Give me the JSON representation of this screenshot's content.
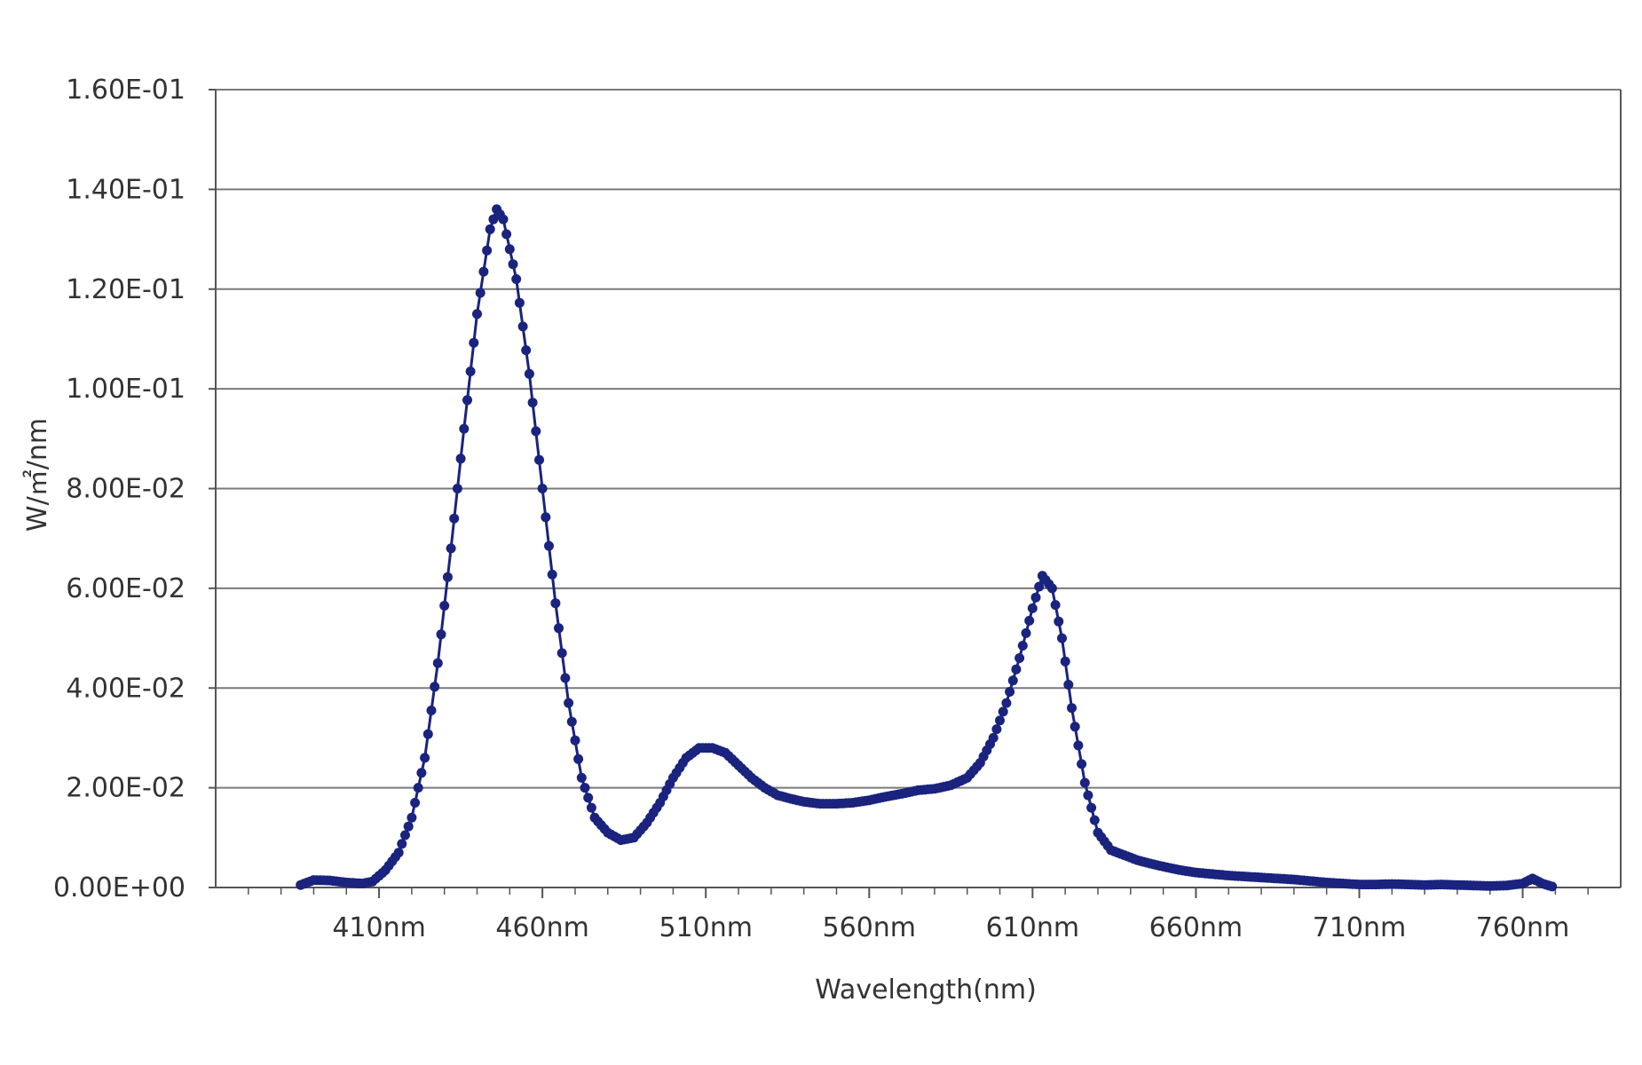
{
  "chart_data": {
    "type": "line",
    "xlabel": "Wavelength(nm)",
    "ylabel": "W/㎡/nm",
    "xlim": [
      360,
      790
    ],
    "ylim": [
      0,
      0.16
    ],
    "grid": "horizontal",
    "legend": "none",
    "colors": {
      "series": "#1a237e",
      "grid": "#7a7a7a",
      "axis": "#555555",
      "text": "#333333"
    },
    "x_ticks": [
      {
        "value": 410,
        "label": "410nm"
      },
      {
        "value": 460,
        "label": "460nm"
      },
      {
        "value": 510,
        "label": "510nm"
      },
      {
        "value": 560,
        "label": "560nm"
      },
      {
        "value": 610,
        "label": "610nm"
      },
      {
        "value": 660,
        "label": "660nm"
      },
      {
        "value": 710,
        "label": "710nm"
      },
      {
        "value": 760,
        "label": "760nm"
      }
    ],
    "y_ticks": [
      {
        "value": 0.0,
        "label": "0.00E+00"
      },
      {
        "value": 0.02,
        "label": "2.00E-02"
      },
      {
        "value": 0.04,
        "label": "4.00E-02"
      },
      {
        "value": 0.06,
        "label": "6.00E-02"
      },
      {
        "value": 0.08,
        "label": "8.00E-02"
      },
      {
        "value": 0.1,
        "label": "1.00E-01"
      },
      {
        "value": 0.12,
        "label": "1.20E-01"
      },
      {
        "value": 0.14,
        "label": "1.40E-01"
      },
      {
        "value": 0.16,
        "label": "1.60E-01"
      }
    ],
    "series": [
      {
        "points": [
          [
            386,
            0.0005
          ],
          [
            390,
            0.0015
          ],
          [
            395,
            0.0014
          ],
          [
            400,
            0.001
          ],
          [
            405,
            0.0008
          ],
          [
            408,
            0.0012
          ],
          [
            412,
            0.0035
          ],
          [
            416,
            0.007
          ],
          [
            420,
            0.014
          ],
          [
            424,
            0.026
          ],
          [
            428,
            0.045
          ],
          [
            432,
            0.068
          ],
          [
            436,
            0.092
          ],
          [
            440,
            0.115
          ],
          [
            444,
            0.132
          ],
          [
            446,
            0.136
          ],
          [
            448,
            0.134
          ],
          [
            452,
            0.122
          ],
          [
            456,
            0.103
          ],
          [
            460,
            0.08
          ],
          [
            464,
            0.057
          ],
          [
            468,
            0.037
          ],
          [
            472,
            0.022
          ],
          [
            476,
            0.014
          ],
          [
            480,
            0.011
          ],
          [
            484,
            0.0095
          ],
          [
            488,
            0.01
          ],
          [
            492,
            0.013
          ],
          [
            496,
            0.017
          ],
          [
            500,
            0.022
          ],
          [
            504,
            0.026
          ],
          [
            508,
            0.028
          ],
          [
            512,
            0.028
          ],
          [
            516,
            0.027
          ],
          [
            520,
            0.0245
          ],
          [
            524,
            0.022
          ],
          [
            528,
            0.02
          ],
          [
            532,
            0.0185
          ],
          [
            536,
            0.0178
          ],
          [
            540,
            0.0172
          ],
          [
            545,
            0.0168
          ],
          [
            550,
            0.0168
          ],
          [
            555,
            0.017
          ],
          [
            560,
            0.0175
          ],
          [
            565,
            0.0182
          ],
          [
            570,
            0.0188
          ],
          [
            575,
            0.0195
          ],
          [
            580,
            0.0198
          ],
          [
            585,
            0.0205
          ],
          [
            590,
            0.022
          ],
          [
            594,
            0.025
          ],
          [
            598,
            0.03
          ],
          [
            602,
            0.037
          ],
          [
            606,
            0.046
          ],
          [
            610,
            0.056
          ],
          [
            613,
            0.0625
          ],
          [
            616,
            0.06
          ],
          [
            619,
            0.05
          ],
          [
            622,
            0.036
          ],
          [
            626,
            0.021
          ],
          [
            630,
            0.011
          ],
          [
            634,
            0.0075
          ],
          [
            638,
            0.0065
          ],
          [
            642,
            0.0055
          ],
          [
            646,
            0.0048
          ],
          [
            650,
            0.0042
          ],
          [
            655,
            0.0035
          ],
          [
            660,
            0.003
          ],
          [
            665,
            0.0027
          ],
          [
            670,
            0.0024
          ],
          [
            675,
            0.0022
          ],
          [
            680,
            0.002
          ],
          [
            685,
            0.0018
          ],
          [
            690,
            0.0016
          ],
          [
            695,
            0.0013
          ],
          [
            700,
            0.001
          ],
          [
            705,
            0.0008
          ],
          [
            710,
            0.0006
          ],
          [
            715,
            0.0006
          ],
          [
            720,
            0.0007
          ],
          [
            725,
            0.0006
          ],
          [
            730,
            0.0005
          ],
          [
            735,
            0.0006
          ],
          [
            740,
            0.0005
          ],
          [
            745,
            0.0004
          ],
          [
            750,
            0.0003
          ],
          [
            755,
            0.0004
          ],
          [
            760,
            0.0008
          ],
          [
            763,
            0.0018
          ],
          [
            766,
            0.0008
          ],
          [
            769,
            0.0002
          ]
        ]
      }
    ]
  }
}
